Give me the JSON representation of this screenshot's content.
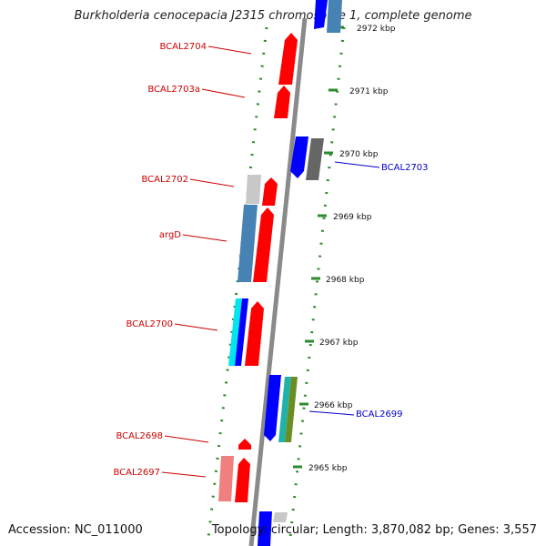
{
  "title": "Burkholderia cenocepacia J2315 chromosome 1, complete genome",
  "accession": "Accession: NC_011000",
  "topology": "Topology: circular; Length: 3,870,082 bp; Genes: 3,557",
  "kbp_marks": [
    "2972 kbp",
    "2971 kbp",
    "2970 kbp",
    "2969 kbp",
    "2968 kbp",
    "2967 kbp",
    "2966 kbp",
    "2965 kbp"
  ],
  "gene_labels": {
    "left": [
      "BCAL2704",
      "BCAL2703a",
      "BCAL2702",
      "argD",
      "BCAL2700",
      "BCAL2698",
      "BCAL2697"
    ],
    "right": [
      "BCAL2703",
      "BCAL2699"
    ]
  },
  "colors": {
    "backbone": "#8a8a8a",
    "tick": "#2e8b2e",
    "label_left": "#cc0000",
    "label_right": "#0000cc",
    "gene_red": "#ff0000",
    "gene_blue": "#0000ff",
    "gene_steel": "#4682b4",
    "gene_gray": "#666666",
    "gene_lightgray": "#c8c8c8",
    "gene_cyan": "#00e5ee",
    "gene_teal": "#20b2aa",
    "gene_olive": "#6b8e23",
    "gene_pink": "#f08080"
  }
}
